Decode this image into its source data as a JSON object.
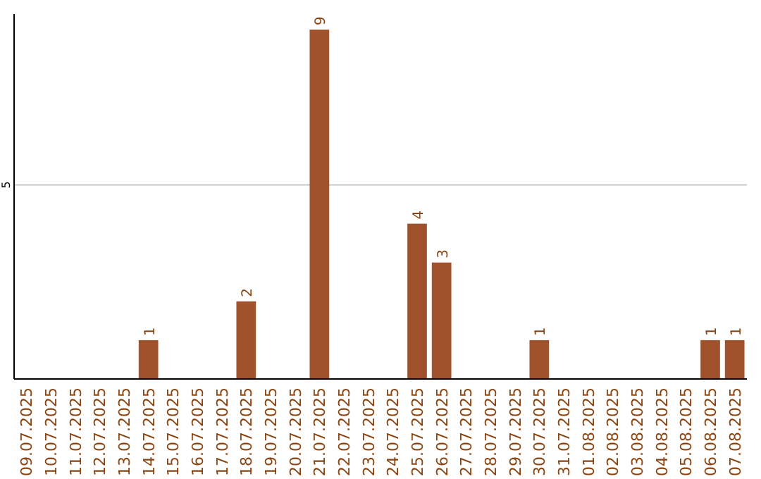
{
  "chart_data": {
    "type": "bar",
    "categories": [
      "09.07.2025",
      "10.07.2025",
      "11.07.2025",
      "12.07.2025",
      "13.07.2025",
      "14.07.2025",
      "15.07.2025",
      "16.07.2025",
      "17.07.2025",
      "18.07.2025",
      "19.07.2025",
      "20.07.2025",
      "21.07.2025",
      "22.07.2025",
      "23.07.2025",
      "24.07.2025",
      "25.07.2025",
      "26.07.2025",
      "27.07.2025",
      "28.07.2025",
      "29.07.2025",
      "30.07.2025",
      "31.07.2025",
      "01.08.2025",
      "02.08.2025",
      "03.08.2025",
      "04.08.2025",
      "05.08.2025",
      "06.08.2025",
      "07.08.2025"
    ],
    "values": [
      0,
      0,
      0,
      0,
      0,
      1,
      0,
      0,
      0,
      2,
      0,
      0,
      9,
      0,
      0,
      0,
      4,
      3,
      0,
      0,
      0,
      1,
      0,
      0,
      0,
      0,
      0,
      0,
      1,
      1
    ],
    "value_labels": [
      null,
      null,
      null,
      null,
      null,
      "1",
      null,
      null,
      null,
      "2",
      null,
      null,
      "9",
      null,
      null,
      null,
      "4",
      "3",
      null,
      null,
      null,
      "1",
      null,
      null,
      null,
      null,
      null,
      null,
      "1",
      "1"
    ],
    "color": "#a0522d",
    "ylim": [
      0,
      9.4
    ],
    "yticks": [
      5
    ],
    "grid": "y"
  }
}
